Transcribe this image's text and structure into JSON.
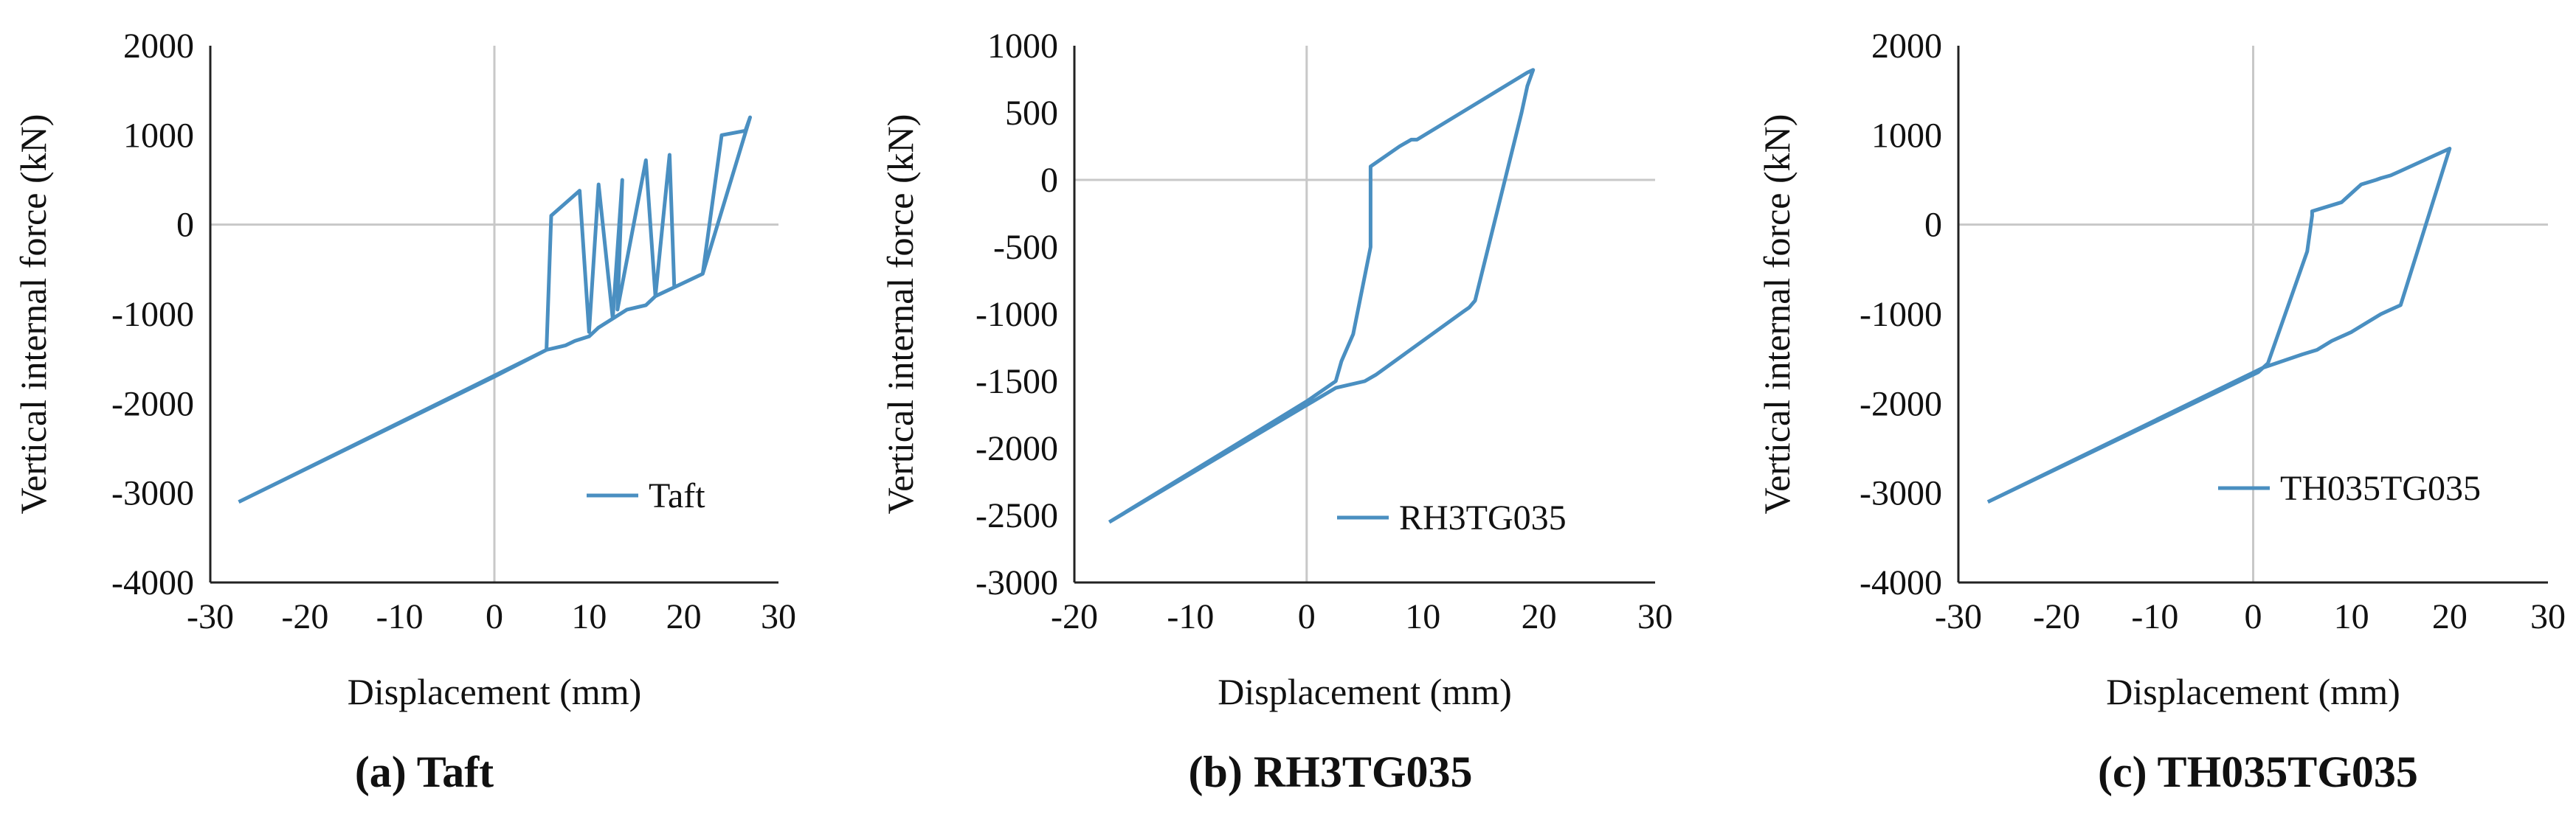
{
  "chart_data": [
    {
      "type": "line",
      "caption": "(a) Taft",
      "xlabel": "Displacement (mm)",
      "ylabel": "Vertical internal force (kN)",
      "xlim": [
        -30,
        30
      ],
      "ylim": [
        -4000,
        2000
      ],
      "xticks": [
        -30,
        -20,
        -10,
        0,
        10,
        20,
        30
      ],
      "yticks": [
        -4000,
        -3000,
        -2000,
        -1000,
        0,
        1000,
        2000
      ],
      "legend_position": "bottom-right",
      "color": "#4a8fc1",
      "series": [
        {
          "name": "Taft",
          "x": [
            -27,
            0,
            5.5,
            6,
            9,
            10,
            11,
            12.5,
            13.5,
            13,
            16,
            17,
            18.5,
            19,
            22,
            24,
            26.5,
            27,
            22,
            20,
            17,
            16,
            14,
            12.5,
            11,
            10,
            8.5,
            7.5,
            5.5,
            -27
          ],
          "y": [
            -3100,
            -1700,
            -1400,
            100,
            380,
            -1200,
            450,
            -1050,
            500,
            -950,
            720,
            -800,
            780,
            -700,
            -550,
            1000,
            1050,
            1200,
            -550,
            -650,
            -800,
            -900,
            -950,
            -1050,
            -1150,
            -1250,
            -1300,
            -1350,
            -1400,
            -3100
          ]
        }
      ]
    },
    {
      "type": "line",
      "caption": "(b) RH3TG035",
      "xlabel": "Displacement (mm)",
      "ylabel": "Vertical internal force (kN)",
      "xlim": [
        -20,
        30
      ],
      "ylim": [
        -3000,
        1000
      ],
      "xticks": [
        -20,
        -10,
        0,
        10,
        20,
        30
      ],
      "yticks": [
        -3000,
        -2500,
        -2000,
        -1500,
        -1000,
        -500,
        0,
        500,
        1000
      ],
      "legend_position": "bottom-right",
      "color": "#4a8fc1",
      "series": [
        {
          "name": "RH3TG035",
          "x": [
            -17,
            0,
            2.5,
            3,
            4,
            5.5,
            5.5,
            8,
            9,
            9.5,
            19,
            19.5,
            19,
            18.5,
            14.5,
            14,
            13.5,
            6,
            5,
            2.5,
            -17
          ],
          "y": [
            -2550,
            -1650,
            -1500,
            -1350,
            -1150,
            -500,
            100,
            250,
            300,
            300,
            800,
            820,
            700,
            500,
            -900,
            -950,
            -980,
            -1450,
            -1500,
            -1550,
            -2550
          ]
        }
      ]
    },
    {
      "type": "line",
      "caption": "(c) TH035TG035",
      "xlabel": "Displacement (mm)",
      "ylabel": "Vertical internal force (kN)",
      "xlim": [
        -30,
        30
      ],
      "ylim": [
        -4000,
        2000
      ],
      "xticks": [
        -30,
        -20,
        -10,
        0,
        10,
        20,
        30
      ],
      "yticks": [
        -4000,
        -3000,
        -2000,
        -1000,
        0,
        1000,
        2000
      ],
      "legend_position": "bottom-right",
      "color": "#4a8fc1",
      "series": [
        {
          "name": "TH035TG035",
          "x": [
            -27,
            0.5,
            1.5,
            5.5,
            6,
            6,
            9,
            10.5,
            11,
            12.5,
            13,
            14,
            15,
            20,
            20,
            15,
            14,
            13,
            11.5,
            10,
            8,
            6.5,
            5,
            1,
            -27
          ],
          "y": [
            -3100,
            -1650,
            -1550,
            -300,
            100,
            150,
            250,
            400,
            450,
            500,
            520,
            550,
            600,
            850,
            850,
            -900,
            -950,
            -1000,
            -1100,
            -1200,
            -1300,
            -1400,
            -1450,
            -1600,
            -3100
          ]
        }
      ]
    }
  ]
}
